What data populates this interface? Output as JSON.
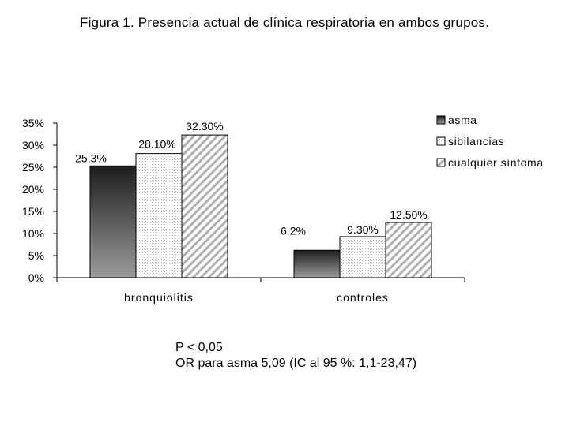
{
  "chart_data": {
    "type": "bar",
    "title": "Figura 1. Presencia actual de clínica respiratoria en ambos grupos.",
    "categories": [
      "bronquiolitis",
      "controles"
    ],
    "series": [
      {
        "name": "asma",
        "values": [
          25.3,
          6.2
        ],
        "labels": [
          "25.3%",
          "6.2%"
        ]
      },
      {
        "name": "sibilancias",
        "values": [
          28.1,
          9.3
        ],
        "labels": [
          "28.10%",
          "9.30%"
        ]
      },
      {
        "name": "cualquier síntoma",
        "values": [
          32.3,
          12.5
        ],
        "labels": [
          "32.30%",
          "12.50%"
        ]
      }
    ],
    "legend_labels": [
      "asma",
      "sibilancias",
      "cualquier síntoma"
    ],
    "ylim": [
      0,
      35
    ],
    "yticks": [
      0,
      5,
      10,
      15,
      20,
      25,
      30,
      35
    ],
    "ytick_labels": [
      "0%",
      "5%",
      "10%",
      "15%",
      "20%",
      "25%",
      "30%",
      "35%"
    ],
    "xlabel": "",
    "ylabel": "",
    "grid": false,
    "legend_position": "right"
  },
  "notes": {
    "line1": "P < 0,05",
    "line2": "OR para asma 5,09 (IC al 95 %: 1,1-23,47)"
  }
}
